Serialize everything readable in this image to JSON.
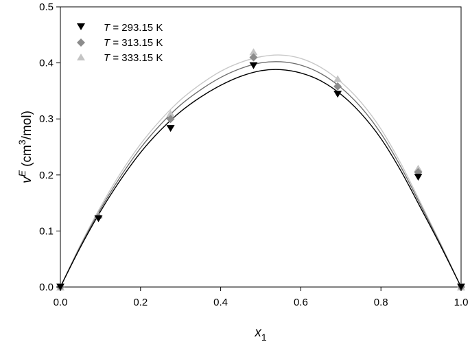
{
  "chart_data": {
    "type": "scatter",
    "xlabel": "x1",
    "ylabel": "vE (cm3/mol)",
    "xlim": [
      0.0,
      1.0
    ],
    "ylim": [
      0.0,
      0.5
    ],
    "xticks": [
      "0.0",
      "0.2",
      "0.4",
      "0.6",
      "0.8",
      "1.0"
    ],
    "yticks": [
      "0.0",
      "0.1",
      "0.2",
      "0.3",
      "0.4",
      "0.5"
    ],
    "grid": false,
    "legend_position": "top-left",
    "series": [
      {
        "name": "T = 293.15 K",
        "marker": "triangle-down",
        "color": "#000000",
        "curve_color": "#000000",
        "x": [
          0.0,
          0.095,
          0.275,
          0.482,
          0.692,
          0.893,
          1.0
        ],
        "y": [
          0.0,
          0.122,
          0.283,
          0.395,
          0.344,
          0.196,
          0.0
        ],
        "fit_x": [
          0.0,
          0.05,
          0.1,
          0.15,
          0.2,
          0.25,
          0.3,
          0.35,
          0.4,
          0.45,
          0.5,
          0.55,
          0.6,
          0.65,
          0.7,
          0.75,
          0.8,
          0.85,
          0.9,
          0.95,
          1.0
        ],
        "fit_y": [
          0.0,
          0.071,
          0.135,
          0.191,
          0.24,
          0.28,
          0.313,
          0.339,
          0.36,
          0.376,
          0.386,
          0.388,
          0.382,
          0.368,
          0.344,
          0.31,
          0.265,
          0.207,
          0.14,
          0.072,
          0.0
        ]
      },
      {
        "name": "T = 313.15 K",
        "marker": "diamond",
        "color": "#8c8c8c",
        "curve_color": "#6e6e6e",
        "x": [
          0.0,
          0.095,
          0.275,
          0.482,
          0.692,
          0.893,
          1.0
        ],
        "y": [
          0.0,
          0.125,
          0.3,
          0.41,
          0.358,
          0.205,
          0.0
        ],
        "fit_x": [
          0.0,
          0.05,
          0.1,
          0.15,
          0.2,
          0.25,
          0.3,
          0.35,
          0.4,
          0.45,
          0.5,
          0.55,
          0.6,
          0.65,
          0.7,
          0.75,
          0.8,
          0.85,
          0.9,
          0.95,
          1.0
        ],
        "fit_y": [
          0.0,
          0.073,
          0.139,
          0.197,
          0.248,
          0.29,
          0.325,
          0.352,
          0.374,
          0.39,
          0.4,
          0.402,
          0.396,
          0.381,
          0.356,
          0.321,
          0.274,
          0.214,
          0.145,
          0.074,
          0.0
        ]
      },
      {
        "name": "T = 333.15 K",
        "marker": "triangle-up",
        "color": "#c4c4c4",
        "curve_color": "#c8c8c8",
        "x": [
          0.0,
          0.095,
          0.275,
          0.482,
          0.692,
          0.893,
          1.0
        ],
        "y": [
          0.0,
          0.128,
          0.31,
          0.42,
          0.372,
          0.212,
          0.0
        ],
        "fit_x": [
          0.0,
          0.05,
          0.1,
          0.15,
          0.2,
          0.25,
          0.3,
          0.35,
          0.4,
          0.45,
          0.5,
          0.55,
          0.6,
          0.65,
          0.7,
          0.75,
          0.8,
          0.85,
          0.9,
          0.95,
          1.0
        ],
        "fit_y": [
          0.0,
          0.075,
          0.143,
          0.203,
          0.255,
          0.298,
          0.334,
          0.362,
          0.385,
          0.401,
          0.411,
          0.414,
          0.408,
          0.392,
          0.366,
          0.33,
          0.282,
          0.22,
          0.149,
          0.076,
          0.0
        ]
      }
    ]
  },
  "legend": {
    "items": [
      {
        "symbol": "T",
        "value": " = 293.15 K"
      },
      {
        "symbol": "T",
        "value": " = 313.15 K"
      },
      {
        "symbol": "T",
        "value": " = 333.15 K"
      }
    ]
  },
  "axes": {
    "x": {
      "base": "x",
      "sub": "1"
    },
    "y": {
      "base": "v",
      "sup": "E",
      "unit_open": " (cm",
      "unit_sup": "3",
      "unit_close": "/mol)"
    }
  }
}
